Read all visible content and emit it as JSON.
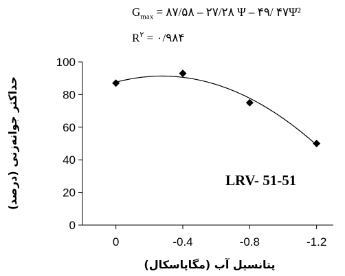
{
  "chart_data": {
    "type": "scatter",
    "equation": {
      "lhs_symbol": "G",
      "lhs_subscript": "max",
      "rhs": " = ۸۷/۵۸ – ۲۷/۲۸ Ψ – ۴۹/ ۴۷Ψ²"
    },
    "r_squared": {
      "label": "R",
      "superscript": "۲",
      "rhs": " = ۰/۹۸۴"
    },
    "cultivar_label": "LRV- 51-51",
    "ylabel": "حداکثر جوانه‌زنی (درصد)",
    "xlabel": "پتانسیل آب (مگاپاسکال)",
    "ylim": [
      0,
      100
    ],
    "xlim": [
      0.2,
      -1.3
    ],
    "x_ticks": [
      0,
      -0.4,
      -0.8,
      -1.2
    ],
    "x_tick_labels": [
      "0",
      "-0.4",
      "-0.8",
      "-1.2"
    ],
    "y_ticks": [
      0,
      20,
      40,
      60,
      80,
      100
    ],
    "y_tick_labels": [
      "0",
      "20",
      "40",
      "60",
      "80",
      "100"
    ],
    "series": [
      {
        "marker": "diamond",
        "x": [
          0,
          -0.4,
          -0.8,
          -1.2
        ],
        "y": [
          87,
          93,
          75,
          50
        ]
      }
    ],
    "trendline": {
      "type": "polynomial",
      "coefficients": [
        87.58,
        -27.28,
        -49.47
      ],
      "x_range": [
        0,
        -1.2
      ]
    },
    "grid": false,
    "legend": "none"
  }
}
